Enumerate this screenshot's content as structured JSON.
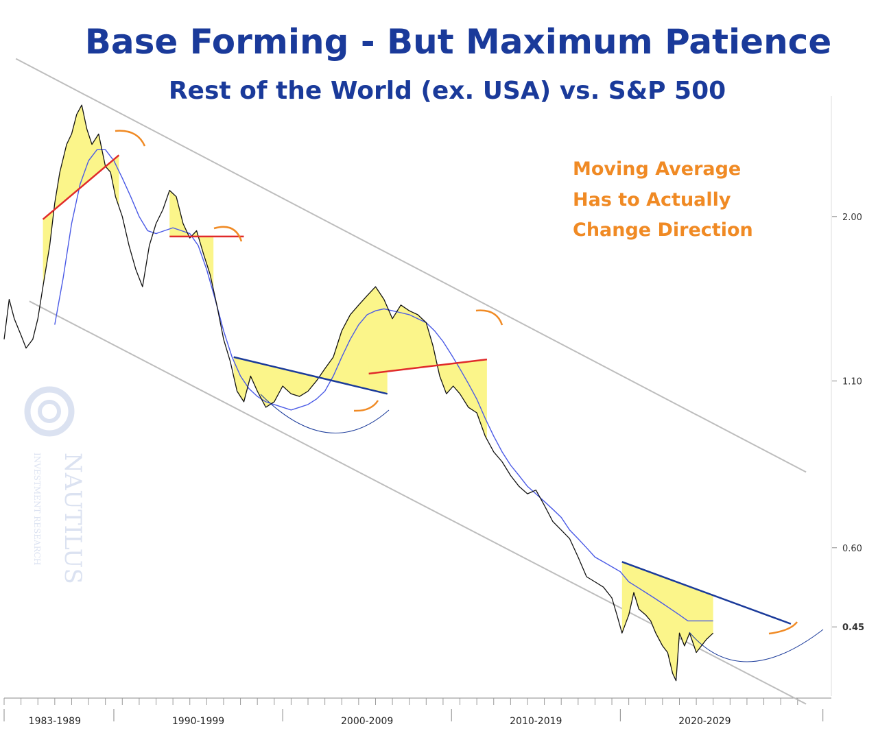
{
  "colors": {
    "title": "#1a3a9a",
    "annotation": "#f08a24",
    "price": "#111111",
    "moving_average": "#4a5ae6",
    "channel": "#bdbdbd",
    "fill": "#fbf58a",
    "red_line": "#e02a2a",
    "blue_line": "#1a3a9a",
    "arc": "#f08a24",
    "watermark": "#d8dff0"
  },
  "watermark": {
    "name": "NAUTILUS",
    "sub": "INVESTMENT RESEARCH"
  },
  "chart_data": {
    "type": "line",
    "title": "Base Forming - But Maximum Patience",
    "subtitle": "Rest of the World (ex. USA)  vs. S&P 500",
    "y_scale": "log",
    "ylim": [
      0.35,
      3.1
    ],
    "y_ticks": [
      {
        "value": 2.0,
        "label": "2.00"
      },
      {
        "value": 1.1,
        "label": "1.10"
      },
      {
        "value": 0.6,
        "label": "0.60"
      },
      {
        "value": 0.45,
        "label": "0.45",
        "highlight": true
      }
    ],
    "x_range": [
      1983,
      2032
    ],
    "x_categories": [
      "1983-1989",
      "1990-1999",
      "2000-2009",
      "2010-2019",
      "2020-2029"
    ],
    "x_category_centers": [
      1986,
      1994.5,
      2004.5,
      2014.5,
      2024.5
    ],
    "x_major_ticks": [
      1983,
      1989.5,
      1999.5,
      2009.5,
      2019.5,
      2031.5
    ],
    "series": [
      {
        "name": "Price",
        "x": [
          1983.0,
          1983.3,
          1983.6,
          1984.0,
          1984.3,
          1984.7,
          1985.0,
          1985.3,
          1985.7,
          1986.0,
          1986.3,
          1986.7,
          1987.0,
          1987.3,
          1987.6,
          1987.9,
          1988.2,
          1988.6,
          1989.0,
          1989.3,
          1989.6,
          1990.0,
          1990.4,
          1990.8,
          1991.2,
          1991.6,
          1992.0,
          1992.4,
          1992.8,
          1993.2,
          1993.6,
          1994.0,
          1994.4,
          1994.8,
          1995.2,
          1995.6,
          1996.0,
          1996.4,
          1996.8,
          1997.2,
          1997.6,
          1998.0,
          1998.5,
          1999.0,
          1999.5,
          2000.0,
          2000.5,
          2001.0,
          2001.5,
          2002.0,
          2002.5,
          2003.0,
          2003.5,
          2004.0,
          2004.5,
          2005.0,
          2005.5,
          2006.0,
          2006.5,
          2007.0,
          2007.5,
          2008.0,
          2008.4,
          2008.8,
          2009.2,
          2009.6,
          2010.0,
          2010.5,
          2011.0,
          2011.5,
          2012.0,
          2012.5,
          2013.0,
          2013.5,
          2014.0,
          2014.5,
          2015.0,
          2015.5,
          2016.0,
          2016.5,
          2017.0,
          2017.5,
          2018.0,
          2018.5,
          2019.0,
          2019.3,
          2019.6,
          2020.0,
          2020.3,
          2020.6,
          2021.0,
          2021.3,
          2021.6,
          2022.0,
          2022.3,
          2022.6,
          2022.8,
          2023.0,
          2023.3,
          2023.6,
          2024.0,
          2024.3,
          2024.6,
          2025.0
        ],
        "values": [
          1.28,
          1.48,
          1.38,
          1.3,
          1.24,
          1.28,
          1.38,
          1.55,
          1.8,
          2.1,
          2.35,
          2.6,
          2.7,
          2.9,
          3.0,
          2.75,
          2.6,
          2.7,
          2.4,
          2.35,
          2.15,
          2.0,
          1.8,
          1.65,
          1.55,
          1.8,
          1.95,
          2.05,
          2.2,
          2.15,
          1.95,
          1.85,
          1.9,
          1.75,
          1.62,
          1.45,
          1.28,
          1.18,
          1.06,
          1.02,
          1.12,
          1.06,
          1.0,
          1.02,
          1.08,
          1.05,
          1.04,
          1.06,
          1.1,
          1.15,
          1.2,
          1.32,
          1.4,
          1.45,
          1.5,
          1.55,
          1.48,
          1.38,
          1.45,
          1.42,
          1.4,
          1.36,
          1.25,
          1.12,
          1.05,
          1.08,
          1.05,
          1.0,
          0.98,
          0.9,
          0.85,
          0.82,
          0.78,
          0.75,
          0.73,
          0.74,
          0.7,
          0.66,
          0.64,
          0.62,
          0.58,
          0.54,
          0.53,
          0.52,
          0.5,
          0.47,
          0.44,
          0.47,
          0.51,
          0.48,
          0.47,
          0.46,
          0.44,
          0.42,
          0.41,
          0.38,
          0.37,
          0.44,
          0.42,
          0.44,
          0.41,
          0.42,
          0.43,
          0.44
        ]
      },
      {
        "name": "Moving Average",
        "x": [
          1986.0,
          1986.5,
          1987.0,
          1987.5,
          1988.0,
          1988.5,
          1989.0,
          1989.5,
          1990.0,
          1990.5,
          1991.0,
          1991.5,
          1992.0,
          1992.5,
          1993.0,
          1993.5,
          1994.0,
          1994.5,
          1995.0,
          1995.5,
          1996.0,
          1996.5,
          1997.0,
          1997.5,
          1998.0,
          1998.5,
          1999.0,
          1999.5,
          2000.0,
          2000.5,
          2001.0,
          2001.5,
          2002.0,
          2002.5,
          2003.0,
          2003.5,
          2004.0,
          2004.5,
          2005.0,
          2005.5,
          2006.0,
          2006.5,
          2007.0,
          2007.5,
          2008.0,
          2008.5,
          2009.0,
          2009.5,
          2010.0,
          2010.5,
          2011.0,
          2011.5,
          2012.0,
          2012.5,
          2013.0,
          2013.5,
          2014.0,
          2014.5,
          2015.0,
          2015.5,
          2016.0,
          2016.5,
          2017.0,
          2017.5,
          2018.0,
          2018.5,
          2019.0,
          2019.5,
          2020.0,
          2020.5,
          2021.0,
          2021.5,
          2022.0,
          2022.5,
          2023.0,
          2023.5,
          2024.0,
          2024.5,
          2025.0
        ],
        "values": [
          1.35,
          1.6,
          1.95,
          2.25,
          2.45,
          2.55,
          2.55,
          2.45,
          2.3,
          2.15,
          2.0,
          1.9,
          1.88,
          1.9,
          1.92,
          1.9,
          1.88,
          1.8,
          1.65,
          1.48,
          1.32,
          1.2,
          1.12,
          1.07,
          1.04,
          1.02,
          1.01,
          1.0,
          0.99,
          1.0,
          1.01,
          1.03,
          1.06,
          1.12,
          1.2,
          1.28,
          1.35,
          1.4,
          1.42,
          1.43,
          1.42,
          1.41,
          1.4,
          1.38,
          1.36,
          1.32,
          1.27,
          1.21,
          1.15,
          1.09,
          1.03,
          0.96,
          0.9,
          0.85,
          0.81,
          0.78,
          0.75,
          0.73,
          0.71,
          0.69,
          0.67,
          0.64,
          0.62,
          0.6,
          0.58,
          0.57,
          0.56,
          0.55,
          0.53,
          0.52,
          0.51,
          0.5,
          0.49,
          0.48,
          0.47,
          0.46,
          0.46,
          0.46,
          0.46
        ]
      }
    ],
    "channel_lines": [
      {
        "name": "upper",
        "x1": 1983.7,
        "y1": 3.55,
        "x2": 2030.5,
        "y2": 0.79
      },
      {
        "name": "lower",
        "x1": 1984.5,
        "y1": 1.47,
        "x2": 2030.5,
        "y2": 0.34
      }
    ],
    "trend_lines": [
      {
        "name": "support-1986",
        "color": "red",
        "x1": 1985.3,
        "y1": 1.98,
        "x2": 1989.8,
        "y2": 2.5
      },
      {
        "name": "neckline-1993",
        "color": "red",
        "x1": 1992.8,
        "y1": 1.86,
        "x2": 1997.2,
        "y2": 1.86
      },
      {
        "name": "resistance-2000",
        "color": "blue",
        "x1": 1996.6,
        "y1": 1.2,
        "x2": 2005.7,
        "y2": 1.05
      },
      {
        "name": "support-2004",
        "color": "red",
        "x1": 2004.6,
        "y1": 1.13,
        "x2": 2011.6,
        "y2": 1.19
      },
      {
        "name": "resistance-2019",
        "color": "blue",
        "x1": 2019.6,
        "y1": 0.57,
        "x2": 2029.6,
        "y2": 0.455
      }
    ],
    "annotations": [
      {
        "text_lines": [
          "Moving Average",
          "Has to Actually",
          "Change Direction"
        ],
        "anchor": "top-right"
      }
    ]
  }
}
